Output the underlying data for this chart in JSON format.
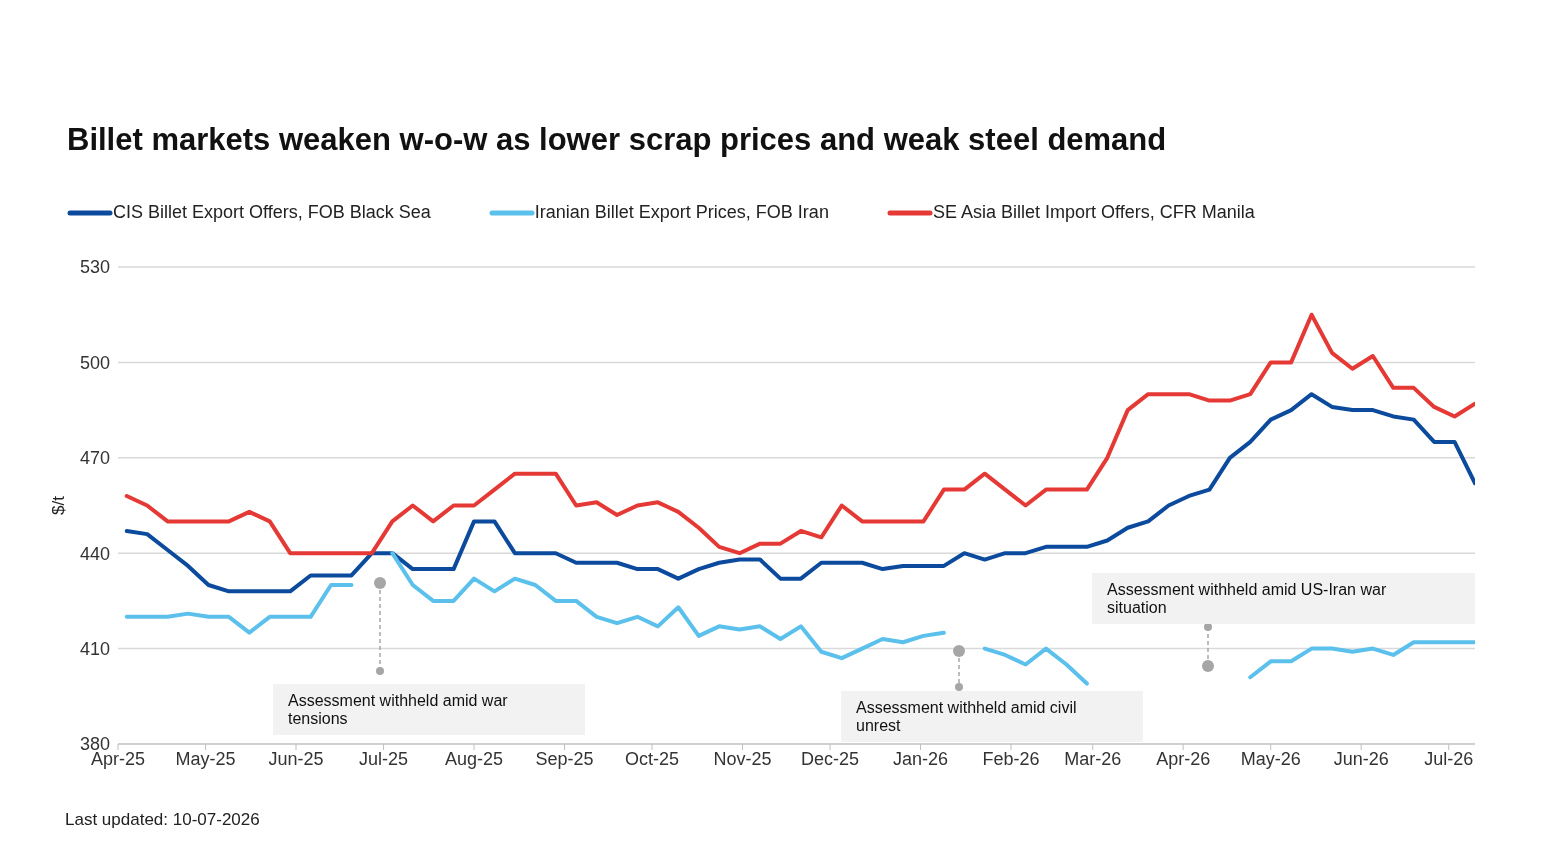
{
  "chart_data": {
    "type": "line",
    "title": "Billet markets weaken w-o-w as lower scrap prices and weak steel demand",
    "ylabel": "$/t",
    "x": [
      "2025-04-04",
      "2025-04-11",
      "2025-04-18",
      "2025-04-25",
      "2025-05-02",
      "2025-05-09",
      "2025-05-16",
      "2025-05-23",
      "2025-05-30",
      "2025-06-06",
      "2025-06-13",
      "2025-06-20",
      "2025-06-27",
      "2025-07-04",
      "2025-07-11",
      "2025-07-18",
      "2025-07-25",
      "2025-08-01",
      "2025-08-08",
      "2025-08-15",
      "2025-08-22",
      "2025-08-29",
      "2025-09-05",
      "2025-09-12",
      "2025-09-19",
      "2025-09-26",
      "2025-10-03",
      "2025-10-10",
      "2025-10-17",
      "2025-10-24",
      "2025-10-31",
      "2025-11-07",
      "2025-11-14",
      "2025-11-21",
      "2025-11-28",
      "2025-12-05",
      "2025-12-12",
      "2025-12-19",
      "2025-12-26",
      "2026-01-02",
      "2026-01-09",
      "2026-01-16",
      "2026-01-23",
      "2026-01-30",
      "2026-02-06",
      "2026-02-13",
      "2026-02-20",
      "2026-02-27",
      "2026-03-06",
      "2026-03-13",
      "2026-03-20",
      "2026-03-27",
      "2026-04-03",
      "2026-04-10",
      "2026-04-17",
      "2026-04-24",
      "2026-05-01",
      "2026-05-08",
      "2026-05-15",
      "2026-05-22",
      "2026-05-29",
      "2026-06-05",
      "2026-06-12",
      "2026-06-19",
      "2026-06-26",
      "2026-07-03",
      "2026-07-10"
    ],
    "series": [
      {
        "name": "CIS Billet Export Offers, FOB Black Sea",
        "color": "#0b4a9c",
        "values": [
          447,
          446,
          441,
          436,
          430,
          428,
          428,
          428,
          428,
          433,
          433,
          433,
          440,
          440,
          435,
          435,
          435,
          450,
          450,
          440,
          440,
          440,
          437,
          437,
          437,
          435,
          435,
          432,
          435,
          437,
          438,
          438,
          432,
          432,
          437,
          437,
          437,
          435,
          436,
          436,
          436,
          440,
          438,
          440,
          440,
          442,
          442,
          442,
          444,
          448,
          450,
          455,
          458,
          460,
          470,
          475,
          482,
          485,
          490,
          486,
          485,
          485,
          483,
          482,
          475,
          475,
          462
        ]
      },
      {
        "name": "Iranian Billet Export Prices, FOB Iran",
        "color": "#5bc0eb",
        "values": [
          420,
          420,
          420,
          421,
          420,
          420,
          415,
          420,
          420,
          420,
          430,
          430,
          null,
          440,
          430,
          425,
          425,
          432,
          428,
          432,
          430,
          425,
          425,
          420,
          418,
          420,
          417,
          423,
          414,
          417,
          416,
          417,
          413,
          417,
          409,
          407,
          410,
          413,
          412,
          414,
          415,
          null,
          410,
          408,
          405,
          410,
          405,
          399,
          null,
          null,
          null,
          null,
          null,
          null,
          null,
          401,
          406,
          406,
          410,
          410,
          409,
          410,
          408,
          412,
          412,
          412,
          412
        ]
      },
      {
        "name": "SE Asia Billet Import Offers, CFR Manila",
        "color": "#e53935",
        "values": [
          458,
          455,
          450,
          450,
          450,
          450,
          453,
          450,
          440,
          440,
          440,
          440,
          440,
          450,
          455,
          450,
          455,
          455,
          460,
          465,
          465,
          465,
          455,
          456,
          452,
          455,
          456,
          453,
          448,
          442,
          440,
          443,
          443,
          447,
          445,
          455,
          450,
          450,
          450,
          450,
          460,
          460,
          465,
          460,
          455,
          460,
          460,
          460,
          470,
          485,
          490,
          490,
          490,
          488,
          488,
          490,
          500,
          500,
          515,
          503,
          498,
          502,
          492,
          492,
          486,
          483,
          487
        ]
      }
    ],
    "xlim": [
      "2025-04-01",
      "2026-07-10"
    ],
    "xticks": [
      {
        "value": "2025-04-01",
        "label": "Apr-25"
      },
      {
        "value": "2025-05-01",
        "label": "May-25"
      },
      {
        "value": "2025-06-01",
        "label": "Jun-25"
      },
      {
        "value": "2025-07-01",
        "label": "Jul-25"
      },
      {
        "value": "2025-08-01",
        "label": "Aug-25"
      },
      {
        "value": "2025-09-01",
        "label": "Sep-25"
      },
      {
        "value": "2025-10-01",
        "label": "Oct-25"
      },
      {
        "value": "2025-11-01",
        "label": "Nov-25"
      },
      {
        "value": "2025-12-01",
        "label": "Dec-25"
      },
      {
        "value": "2026-01-01",
        "label": "Jan-26"
      },
      {
        "value": "2026-02-01",
        "label": "Feb-26"
      },
      {
        "value": "2026-03-01",
        "label": "Mar-26"
      },
      {
        "value": "2026-04-01",
        "label": "Apr-26"
      },
      {
        "value": "2026-05-01",
        "label": "May-26"
      },
      {
        "value": "2026-06-01",
        "label": "Jun-26"
      },
      {
        "value": "2026-07-01",
        "label": "Jul-26"
      }
    ],
    "ylim": [
      380,
      530
    ],
    "yticks": [
      380,
      410,
      440,
      470,
      500,
      530
    ],
    "grid": "y",
    "legend": "top",
    "marker": "none",
    "line_style": "solid",
    "annotations": [
      "Assessment withheld amid war tensions",
      "Assessment withheld amid civil unrest",
      "Assessment withheld amid US-Iran war situation",
      "Last updated: 10-07-2026"
    ]
  }
}
